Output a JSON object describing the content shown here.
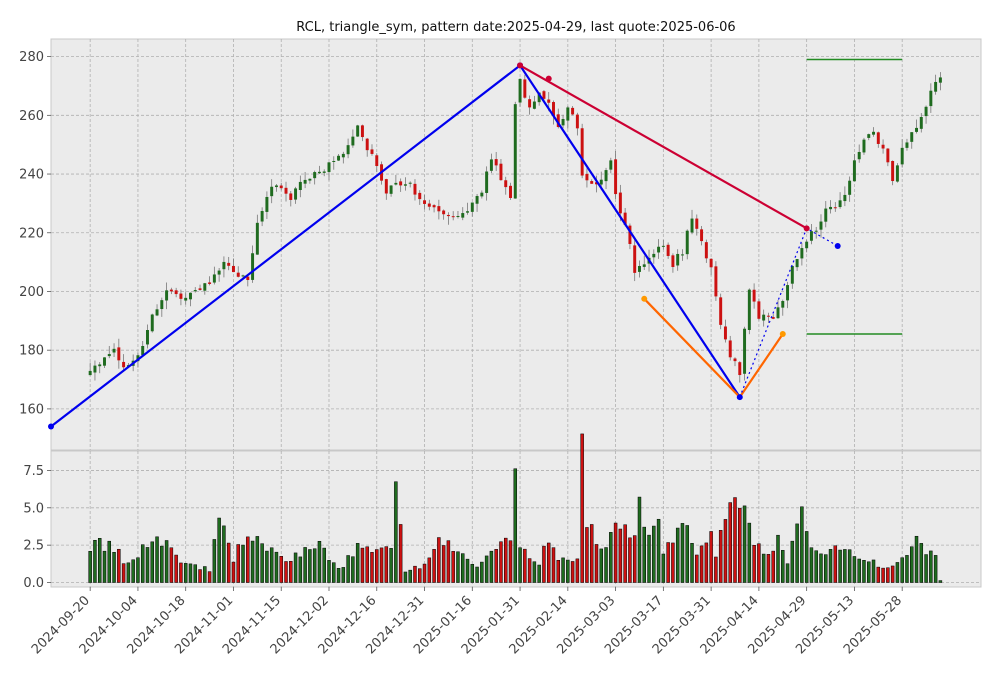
{
  "colors": {
    "up": "#1f6b1f",
    "down": "#cc1111",
    "bg": "#ebebeb",
    "blue_leg": "#0000ee",
    "red_leg": "#cc0033",
    "orange_leg": "#ff6600",
    "level_line": "#228b22"
  },
  "chart_data": {
    "type": "candlestick",
    "title": "RCL, triangle_sym, pattern date:2025-04-29, last quote:2025-06-06",
    "price_axis": {
      "ylim": [
        146,
        286
      ],
      "ticks": [
        160,
        180,
        200,
        220,
        240,
        260,
        280
      ],
      "grid": true
    },
    "volume_axis": {
      "ylim": [
        -0.3,
        8.8
      ],
      "ticks": [
        0.0,
        2.5,
        5.0,
        7.5
      ],
      "tick_labels": [
        "0.0",
        "2.5",
        "5.0",
        "7.5"
      ],
      "grid": true
    },
    "x_ticks": [
      {
        "label": "2024-09-20",
        "i": 0
      },
      {
        "label": "2024-10-04",
        "i": 10
      },
      {
        "label": "2024-10-18",
        "i": 20
      },
      {
        "label": "2024-11-01",
        "i": 30
      },
      {
        "label": "2024-11-15",
        "i": 40
      },
      {
        "label": "2024-12-02",
        "i": 50
      },
      {
        "label": "2024-12-16",
        "i": 60
      },
      {
        "label": "2024-12-31",
        "i": 70
      },
      {
        "label": "2025-01-16",
        "i": 80
      },
      {
        "label": "2025-01-31",
        "i": 90
      },
      {
        "label": "2025-02-14",
        "i": 100
      },
      {
        "label": "2025-03-03",
        "i": 110
      },
      {
        "label": "2025-03-17",
        "i": 120
      },
      {
        "label": "2025-03-31",
        "i": 130
      },
      {
        "label": "2025-04-14",
        "i": 140
      },
      {
        "label": "2025-04-29",
        "i": 150
      },
      {
        "label": "2025-05-13",
        "i": 160
      },
      {
        "label": "2025-05-28",
        "i": 170
      }
    ],
    "x_range": [
      -8.2,
      186.5
    ],
    "price_anchors": [
      {
        "i": 0,
        "p": 172
      },
      {
        "i": 3,
        "p": 178
      },
      {
        "i": 5,
        "p": 181
      },
      {
        "i": 7,
        "p": 173
      },
      {
        "i": 10,
        "p": 178
      },
      {
        "i": 13,
        "p": 192
      },
      {
        "i": 16,
        "p": 200
      },
      {
        "i": 20,
        "p": 198
      },
      {
        "i": 25,
        "p": 203
      },
      {
        "i": 28,
        "p": 210
      },
      {
        "i": 30,
        "p": 206
      },
      {
        "i": 33,
        "p": 205
      },
      {
        "i": 35,
        "p": 222
      },
      {
        "i": 38,
        "p": 237
      },
      {
        "i": 42,
        "p": 232
      },
      {
        "i": 45,
        "p": 238
      },
      {
        "i": 50,
        "p": 243
      },
      {
        "i": 54,
        "p": 250
      },
      {
        "i": 56,
        "p": 256
      },
      {
        "i": 58,
        "p": 249
      },
      {
        "i": 60,
        "p": 244
      },
      {
        "i": 62,
        "p": 232
      },
      {
        "i": 64,
        "p": 238
      },
      {
        "i": 67,
        "p": 236
      },
      {
        "i": 70,
        "p": 230
      },
      {
        "i": 74,
        "p": 227
      },
      {
        "i": 78,
        "p": 226
      },
      {
        "i": 82,
        "p": 234
      },
      {
        "i": 84,
        "p": 245
      },
      {
        "i": 87,
        "p": 235
      },
      {
        "i": 88,
        "p": 232
      },
      {
        "i": 89,
        "p": 265
      },
      {
        "i": 90,
        "p": 272
      },
      {
        "i": 92,
        "p": 262
      },
      {
        "i": 94,
        "p": 268
      },
      {
        "i": 96,
        "p": 263
      },
      {
        "i": 98,
        "p": 256
      },
      {
        "i": 100,
        "p": 262
      },
      {
        "i": 102,
        "p": 256
      },
      {
        "i": 103,
        "p": 240
      },
      {
        "i": 106,
        "p": 236
      },
      {
        "i": 109,
        "p": 244
      },
      {
        "i": 110,
        "p": 232
      },
      {
        "i": 112,
        "p": 223
      },
      {
        "i": 114,
        "p": 207
      },
      {
        "i": 116,
        "p": 209
      },
      {
        "i": 118,
        "p": 212
      },
      {
        "i": 120,
        "p": 216
      },
      {
        "i": 122,
        "p": 209
      },
      {
        "i": 124,
        "p": 214
      },
      {
        "i": 126,
        "p": 225
      },
      {
        "i": 128,
        "p": 216
      },
      {
        "i": 130,
        "p": 208
      },
      {
        "i": 132,
        "p": 190
      },
      {
        "i": 134,
        "p": 178
      },
      {
        "i": 136,
        "p": 172
      },
      {
        "i": 138,
        "p": 200
      },
      {
        "i": 140,
        "p": 192
      },
      {
        "i": 143,
        "p": 190
      },
      {
        "i": 145,
        "p": 198
      },
      {
        "i": 147,
        "p": 208
      },
      {
        "i": 149,
        "p": 214
      },
      {
        "i": 150,
        "p": 218
      },
      {
        "i": 152,
        "p": 222
      },
      {
        "i": 154,
        "p": 227
      },
      {
        "i": 156,
        "p": 230
      },
      {
        "i": 158,
        "p": 233
      },
      {
        "i": 160,
        "p": 244
      },
      {
        "i": 162,
        "p": 252
      },
      {
        "i": 164,
        "p": 253
      },
      {
        "i": 166,
        "p": 248
      },
      {
        "i": 168,
        "p": 238
      },
      {
        "i": 170,
        "p": 248
      },
      {
        "i": 172,
        "p": 253
      },
      {
        "i": 174,
        "p": 260
      },
      {
        "i": 176,
        "p": 268
      },
      {
        "i": 178,
        "p": 274
      }
    ],
    "volume_anchors": [
      {
        "i": 0,
        "v": 2.6
      },
      {
        "i": 5,
        "v": 2.3
      },
      {
        "i": 8,
        "v": 1.1
      },
      {
        "i": 12,
        "v": 2.8
      },
      {
        "i": 16,
        "v": 2.8
      },
      {
        "i": 20,
        "v": 1.2
      },
      {
        "i": 25,
        "v": 0.9
      },
      {
        "i": 27,
        "v": 4.1
      },
      {
        "i": 30,
        "v": 1.6
      },
      {
        "i": 33,
        "v": 3.3
      },
      {
        "i": 40,
        "v": 1.5
      },
      {
        "i": 48,
        "v": 2.4
      },
      {
        "i": 52,
        "v": 0.9
      },
      {
        "i": 56,
        "v": 2.3
      },
      {
        "i": 60,
        "v": 2.0
      },
      {
        "i": 63,
        "v": 2.3
      },
      {
        "i": 64,
        "v": 6.3
      },
      {
        "i": 66,
        "v": 0.6
      },
      {
        "i": 70,
        "v": 1.3
      },
      {
        "i": 72,
        "v": 2.7
      },
      {
        "i": 78,
        "v": 2.2
      },
      {
        "i": 80,
        "v": 1.1
      },
      {
        "i": 84,
        "v": 1.8
      },
      {
        "i": 88,
        "v": 3.0
      },
      {
        "i": 89,
        "v": 8.0
      },
      {
        "i": 90,
        "v": 2.6
      },
      {
        "i": 94,
        "v": 1.4
      },
      {
        "i": 96,
        "v": 2.7
      },
      {
        "i": 98,
        "v": 1.6
      },
      {
        "i": 102,
        "v": 1.5
      },
      {
        "i": 103,
        "v": 8.7
      },
      {
        "i": 104,
        "v": 4.1
      },
      {
        "i": 108,
        "v": 2.0
      },
      {
        "i": 110,
        "v": 4.6
      },
      {
        "i": 113,
        "v": 2.8
      },
      {
        "i": 115,
        "v": 5.0
      },
      {
        "i": 118,
        "v": 3.2
      },
      {
        "i": 119,
        "v": 5.0
      },
      {
        "i": 120,
        "v": 2.3
      },
      {
        "i": 125,
        "v": 3.6
      },
      {
        "i": 127,
        "v": 1.6
      },
      {
        "i": 130,
        "v": 3.9
      },
      {
        "i": 131,
        "v": 2.0
      },
      {
        "i": 133,
        "v": 5.1
      },
      {
        "i": 134,
        "v": 5.4
      },
      {
        "i": 137,
        "v": 5.8
      },
      {
        "i": 139,
        "v": 2.9
      },
      {
        "i": 141,
        "v": 1.7
      },
      {
        "i": 144,
        "v": 2.8
      },
      {
        "i": 146,
        "v": 1.5
      },
      {
        "i": 149,
        "v": 4.3
      },
      {
        "i": 152,
        "v": 2.2
      },
      {
        "i": 155,
        "v": 2.1
      },
      {
        "i": 158,
        "v": 2.6
      },
      {
        "i": 160,
        "v": 1.5
      },
      {
        "i": 164,
        "v": 1.3
      },
      {
        "i": 168,
        "v": 1.1
      },
      {
        "i": 171,
        "v": 2.0
      },
      {
        "i": 173,
        "v": 3.5
      },
      {
        "i": 175,
        "v": 1.9
      },
      {
        "i": 177,
        "v": 2.2
      },
      {
        "i": 178,
        "v": 0.15
      }
    ],
    "pattern": {
      "blue_leg": [
        {
          "i": -8.2,
          "p": 154
        },
        {
          "i": 90,
          "p": 277
        },
        {
          "i": 136,
          "p": 164
        },
        {
          "i": 156.5,
          "p": 215.5
        }
      ],
      "red_leg": [
        {
          "i": 90,
          "p": 277
        },
        {
          "i": 150,
          "p": 221.5
        }
      ],
      "red_points": [
        {
          "i": 90,
          "p": 277
        },
        {
          "i": 96,
          "p": 272.5
        },
        {
          "i": 150,
          "p": 221.5
        }
      ],
      "orange_leg": [
        {
          "i": 116,
          "p": 197.5
        },
        {
          "i": 136,
          "p": 164
        },
        {
          "i": 145,
          "p": 185.5
        }
      ],
      "blue_dotted": [
        {
          "i": 136,
          "p": 164
        },
        {
          "i": 150,
          "p": 221.5
        },
        {
          "i": 156.5,
          "p": 215.5
        }
      ],
      "upper_level": {
        "p": 279,
        "i_start": 150,
        "i_end": 170
      },
      "lower_level": {
        "p": 185.5,
        "i_start": 150,
        "i_end": 170
      }
    }
  }
}
